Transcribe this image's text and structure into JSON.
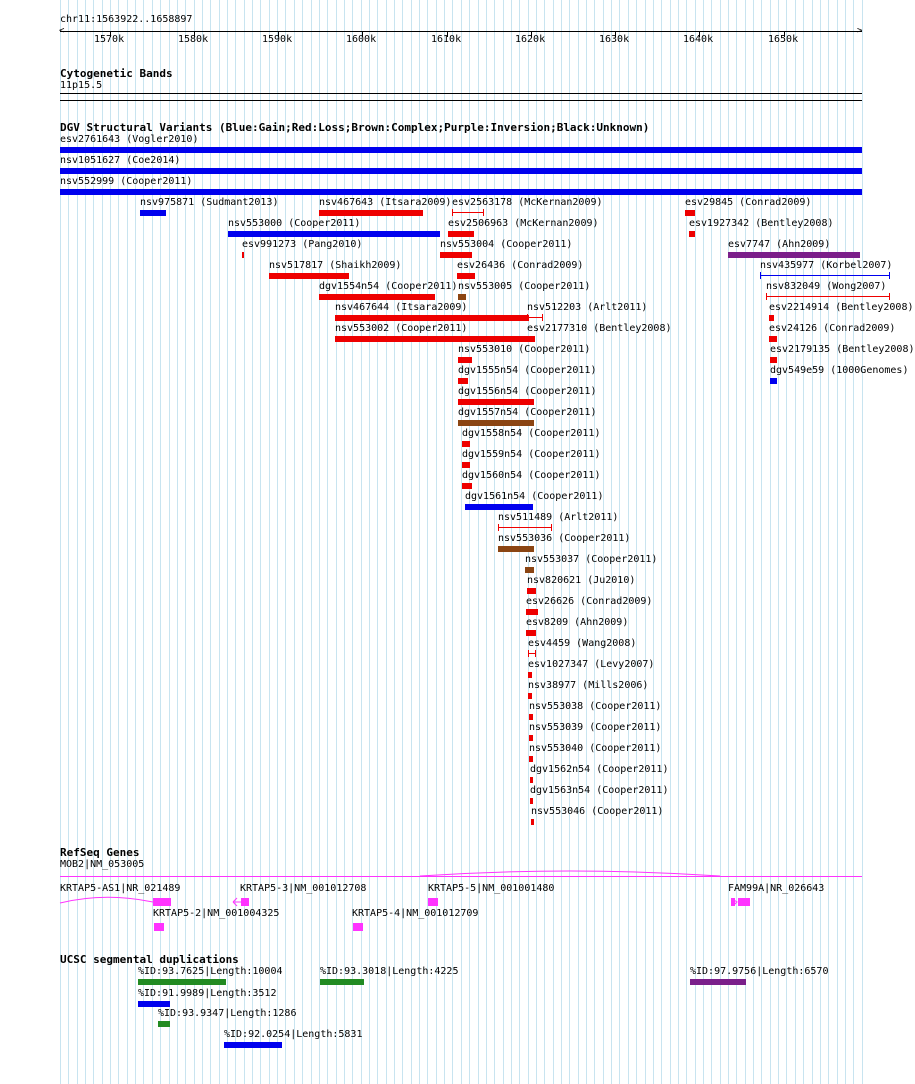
{
  "position": "chr11:1563922..1658897",
  "ruler_ticks": [
    "1570k",
    "1580k",
    "1590k",
    "1600k",
    "1610k",
    "1620k",
    "1630k",
    "1640k",
    "1650k"
  ],
  "cytoband": {
    "title": "Cytogenetic Bands",
    "band": "11p15.5"
  },
  "dgv": {
    "title": "DGV Structural Variants (Blue:Gain;Red:Loss;Brown:Complex;Purple:Inversion;Black:Unknown)",
    "colors": {
      "gain": "#0000ee",
      "loss": "#ee0000",
      "complex": "#8b4513",
      "inversion": "#7b1f8a",
      "unknown": "#000000"
    },
    "items": [
      {
        "label": "esv2761643 (Vogler2010)"
      },
      {
        "label": "nsv1051627 (Coe2014)"
      },
      {
        "label": "nsv552999 (Cooper2011)"
      },
      {
        "label": "nsv975871 (Sudmant2013)"
      },
      {
        "label": "nsv467643 (Itsara2009)"
      },
      {
        "label": "esv2563178 (McKernan2009)"
      },
      {
        "label": "esv29845 (Conrad2009)"
      },
      {
        "label": "nsv553000 (Cooper2011)"
      },
      {
        "label": "esv2506963 (McKernan2009)"
      },
      {
        "label": "esv1927342 (Bentley2008)"
      },
      {
        "label": "esv991273 (Pang2010)"
      },
      {
        "label": "nsv553004 (Cooper2011)"
      },
      {
        "label": "esv7747 (Ahn2009)"
      },
      {
        "label": "nsv517817 (Shaikh2009)"
      },
      {
        "label": "esv26436 (Conrad2009)"
      },
      {
        "label": "nsv435977 (Korbel2007)"
      },
      {
        "label": "dgv1554n54 (Cooper2011)"
      },
      {
        "label": "nsv553005 (Cooper2011)"
      },
      {
        "label": "nsv832049 (Wong2007)"
      },
      {
        "label": "nsv467644 (Itsara2009)"
      },
      {
        "label": "nsv512203 (Arlt2011)"
      },
      {
        "label": "esv2214914 (Bentley2008)"
      },
      {
        "label": "nsv553002 (Cooper2011)"
      },
      {
        "label": "esv2177310 (Bentley2008)"
      },
      {
        "label": "esv24126 (Conrad2009)"
      },
      {
        "label": "nsv553010 (Cooper2011)"
      },
      {
        "label": "esv2179135 (Bentley2008)"
      },
      {
        "label": "dgv1555n54 (Cooper2011)"
      },
      {
        "label": "dgv549e59 (1000Genomes)"
      },
      {
        "label": "dgv1556n54 (Cooper2011)"
      },
      {
        "label": "dgv1557n54 (Cooper2011)"
      },
      {
        "label": "dgv1558n54 (Cooper2011)"
      },
      {
        "label": "dgv1559n54 (Cooper2011)"
      },
      {
        "label": "dgv1560n54 (Cooper2011)"
      },
      {
        "label": "dgv1561n54 (Cooper2011)"
      },
      {
        "label": "nsv511489 (Arlt2011)"
      },
      {
        "label": "nsv553036 (Cooper2011)"
      },
      {
        "label": "nsv553037 (Cooper2011)"
      },
      {
        "label": "nsv820621 (Ju2010)"
      },
      {
        "label": "esv26626 (Conrad2009)"
      },
      {
        "label": "esv8209 (Ahn2009)"
      },
      {
        "label": "esv4459 (Wang2008)"
      },
      {
        "label": "esv1027347 (Levy2007)"
      },
      {
        "label": "nsv38977 (Mills2006)"
      },
      {
        "label": "nsv553038 (Cooper2011)"
      },
      {
        "label": "nsv553039 (Cooper2011)"
      },
      {
        "label": "nsv553040 (Cooper2011)"
      },
      {
        "label": "dgv1562n54 (Cooper2011)"
      },
      {
        "label": "dgv1563n54 (Cooper2011)"
      },
      {
        "label": "nsv553046 (Cooper2011)"
      }
    ]
  },
  "refseq": {
    "title": "RefSeq Genes",
    "color": "#ff33ff",
    "genes": [
      {
        "label": "MOB2|NM_053005"
      },
      {
        "label": "KRTAP5-AS1|NR_021489"
      },
      {
        "label": "KRTAP5-3|NM_001012708"
      },
      {
        "label": "KRTAP5-5|NM_001001480"
      },
      {
        "label": "FAM99A|NR_026643"
      },
      {
        "label": "KRTAP5-2|NM_001004325"
      },
      {
        "label": "KRTAP5-4|NM_001012709"
      }
    ]
  },
  "segdups": {
    "title": "UCSC segmental duplications",
    "items": [
      {
        "label": "%ID:93.7625|Length:10004"
      },
      {
        "label": "%ID:93.3018|Length:4225"
      },
      {
        "label": "%ID:97.9756|Length:6570"
      },
      {
        "label": "%ID:91.9989|Length:3512"
      },
      {
        "label": "%ID:93.9347|Length:1286"
      },
      {
        "label": "%ID:92.0254|Length:5831"
      }
    ]
  }
}
